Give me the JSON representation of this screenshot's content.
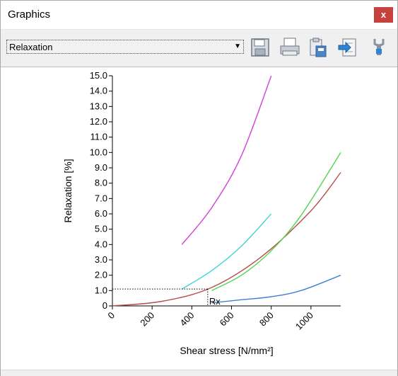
{
  "window": {
    "title": "Graphics",
    "close_label": "x"
  },
  "toolbar": {
    "select_value": "Relaxation",
    "tools": [
      {
        "name": "save-icon"
      },
      {
        "name": "print-icon"
      },
      {
        "name": "clipboard-icon"
      },
      {
        "name": "export-icon"
      },
      {
        "name": "settings-icon"
      }
    ]
  },
  "chart_data": {
    "type": "line",
    "title": "",
    "xlabel": "Shear stress [N/mm²]",
    "ylabel": "Relaxation [%]",
    "xlim": [
      0,
      1150
    ],
    "ylim": [
      0,
      15
    ],
    "x_ticks": [
      0,
      200,
      400,
      600,
      800,
      1000
    ],
    "x_tick_labels": [
      "0",
      "200",
      "400",
      "600",
      "800",
      "1000"
    ],
    "y_ticks": [
      0,
      1,
      2,
      3,
      4,
      5,
      6,
      7,
      8,
      9,
      10,
      11,
      12,
      13,
      14,
      15
    ],
    "y_tick_labels": [
      "0",
      "1.0",
      "2.0",
      "3.0",
      "4.0",
      "5.0",
      "6.0",
      "7.0",
      "8.0",
      "9.0",
      "10.0",
      "11.0",
      "12.0",
      "13.0",
      "14.0",
      "15.0"
    ],
    "grid": false,
    "series": [
      {
        "color": "#d63fd6",
        "x": [
          350,
          500,
          650,
          800
        ],
        "y": [
          4.0,
          6.4,
          9.8,
          15.0
        ]
      },
      {
        "color": "#3fd6d6",
        "x": [
          350,
          500,
          650,
          800
        ],
        "y": [
          1.1,
          2.3,
          3.9,
          6.0
        ]
      },
      {
        "color": "#b94a4a",
        "x": [
          0,
          250,
          500,
          750,
          1000,
          1150
        ],
        "y": [
          0.0,
          0.3,
          1.2,
          3.2,
          6.2,
          8.7
        ]
      },
      {
        "color": "#4fd64f",
        "x": [
          500,
          650,
          800,
          950,
          1150
        ],
        "y": [
          1.0,
          2.0,
          3.6,
          5.9,
          10.0
        ]
      },
      {
        "color": "#3f7fd6",
        "x": [
          500,
          650,
          800,
          950,
          1150
        ],
        "y": [
          0.2,
          0.4,
          0.6,
          1.0,
          2.0
        ]
      }
    ],
    "annotations": [
      {
        "text": "Rx",
        "x": 480,
        "y": 1.1
      }
    ]
  }
}
